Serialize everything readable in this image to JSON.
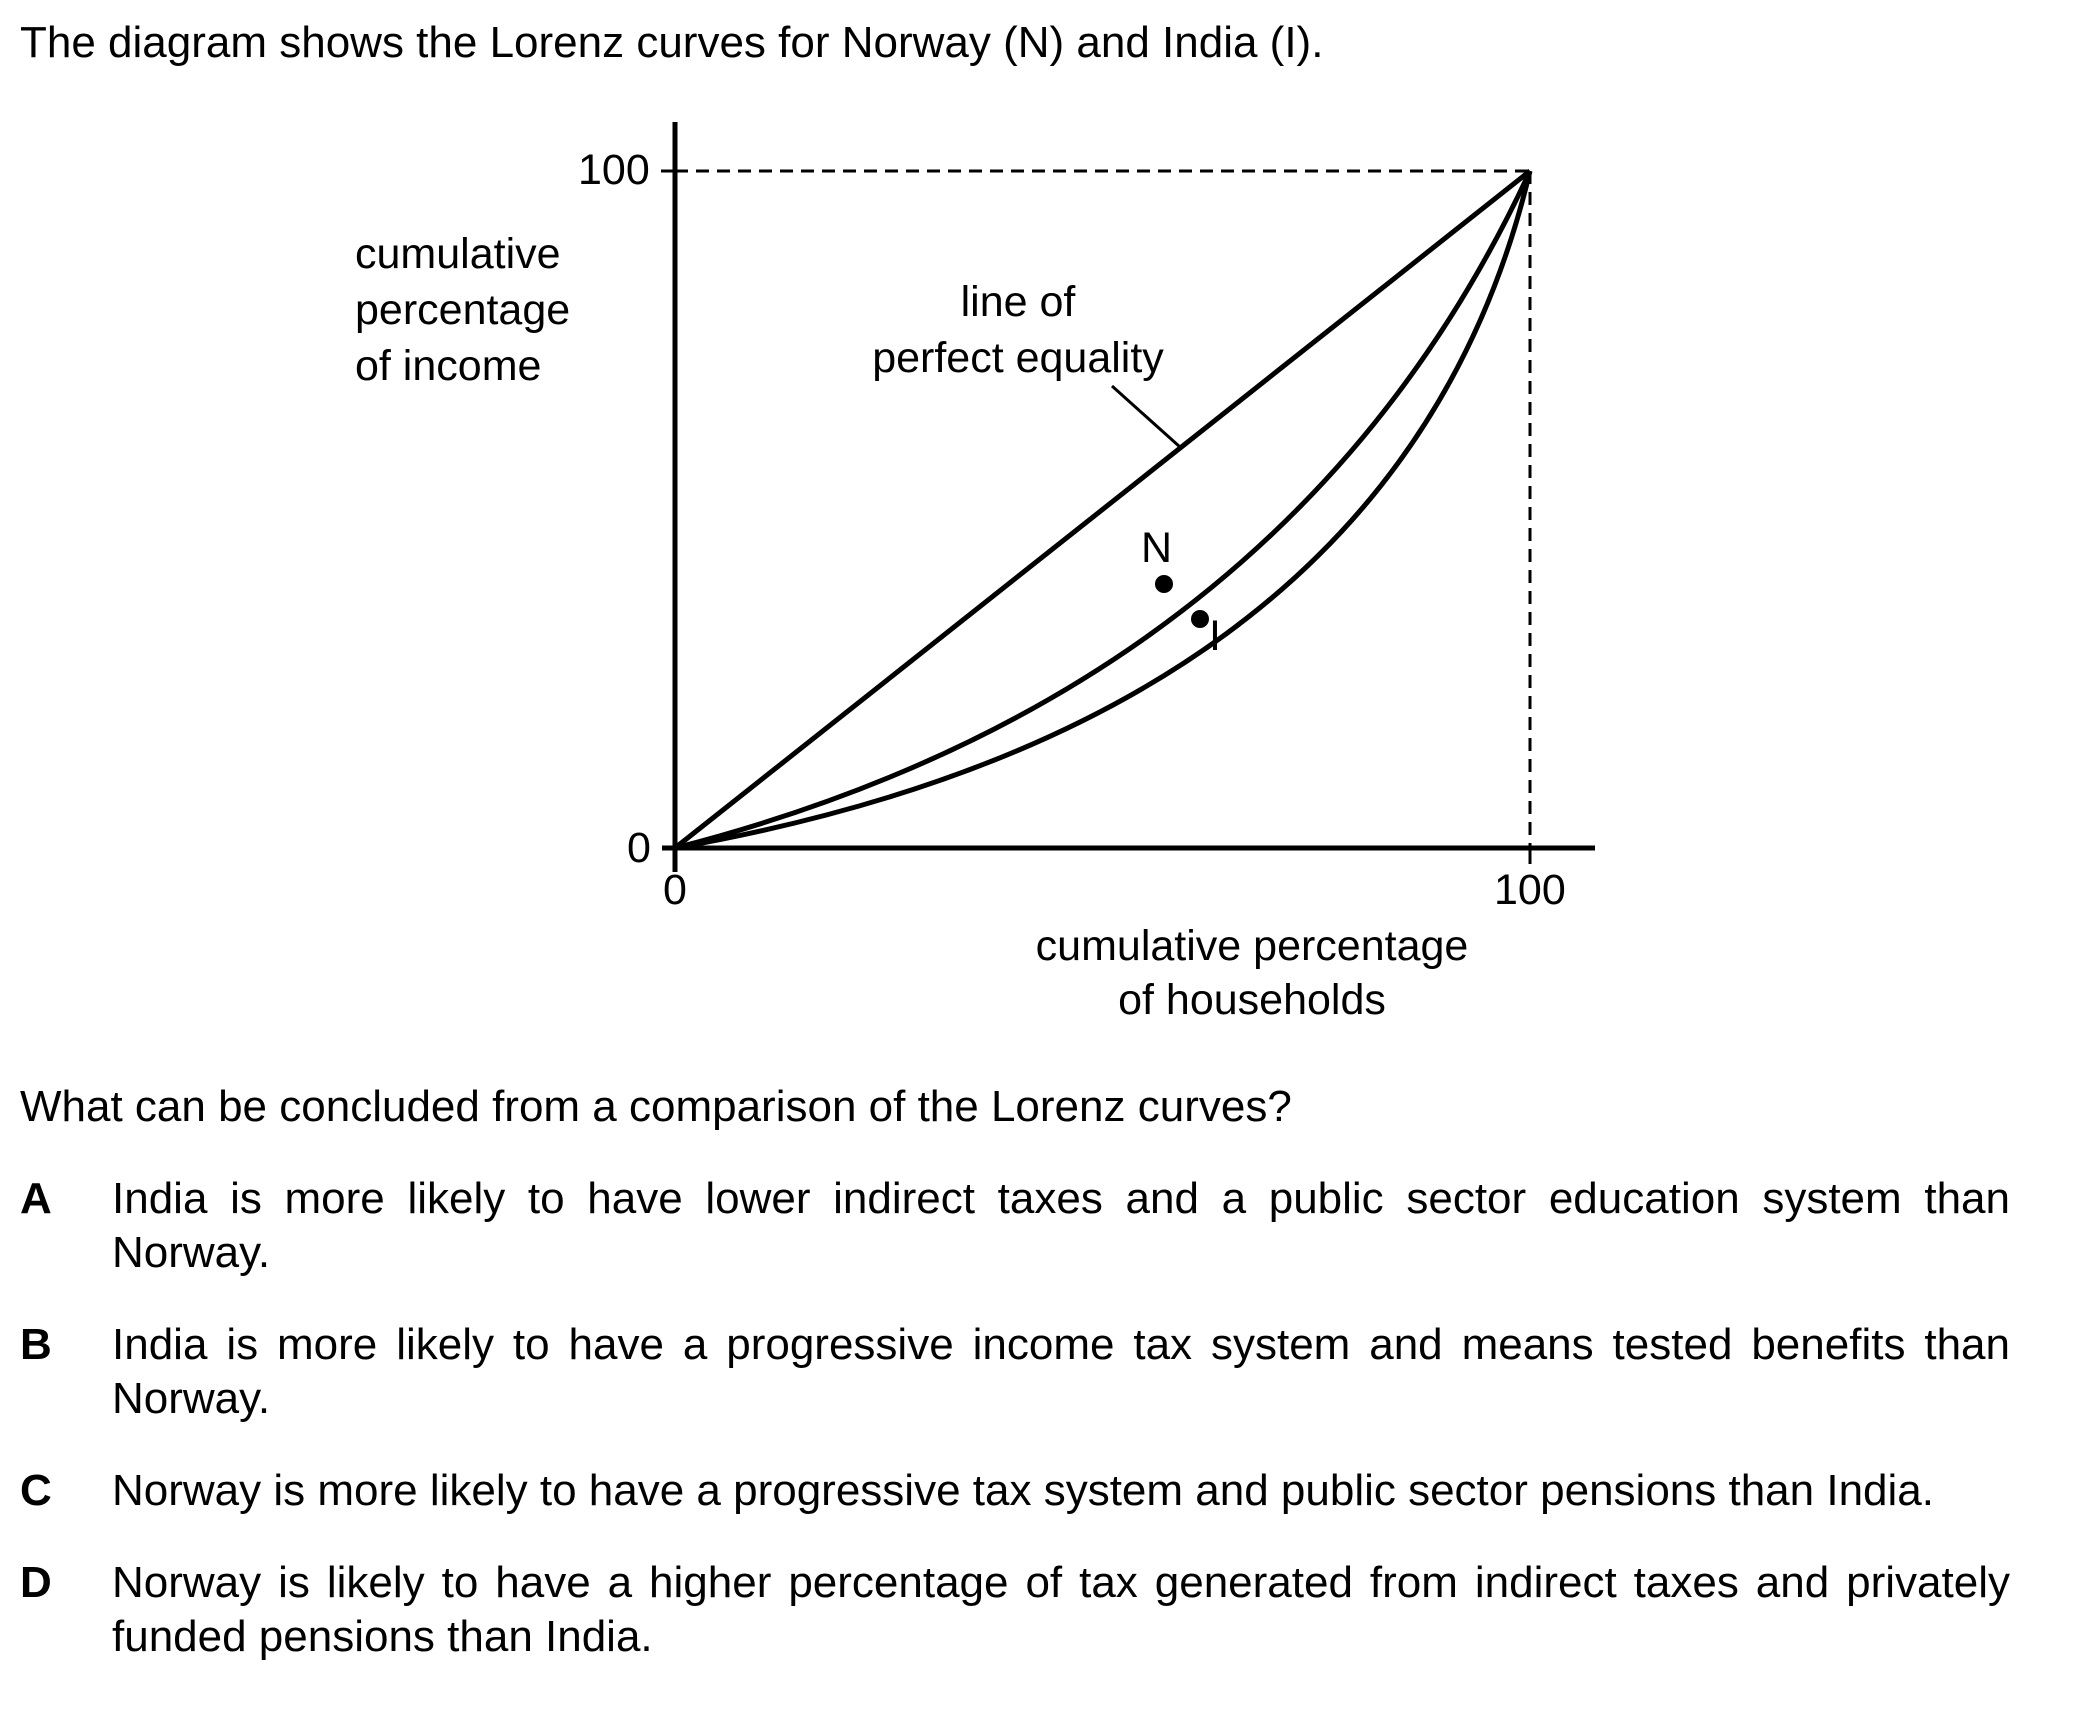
{
  "intro": "The diagram shows the Lorenz curves for Norway (N) and India (I).",
  "figure": {
    "y_axis_label": [
      "cumulative",
      "percentage",
      "of income"
    ],
    "x_axis_label": [
      "cumulative percentage",
      "of households"
    ],
    "y_ticks": [
      "100",
      "0"
    ],
    "x_ticks": [
      "0",
      "100"
    ],
    "equality_label": [
      "line of",
      "perfect equality"
    ],
    "curve_labels": {
      "norway": "N",
      "india": "I"
    },
    "line_color": "#000000"
  },
  "question": "What can be concluded from a comparison of the Lorenz curves?",
  "options": [
    {
      "letter": "A",
      "text": "India is more likely to have lower indirect taxes and a public sector education system than Norway."
    },
    {
      "letter": "B",
      "text": "India is more likely to have a progressive income tax system and means tested benefits than Norway."
    },
    {
      "letter": "C",
      "text": "Norway is more likely to have a progressive tax system and public sector pensions than India."
    },
    {
      "letter": "D",
      "text": "Norway is likely to have a higher percentage of tax generated from indirect taxes and privately funded pensions than India."
    }
  ]
}
